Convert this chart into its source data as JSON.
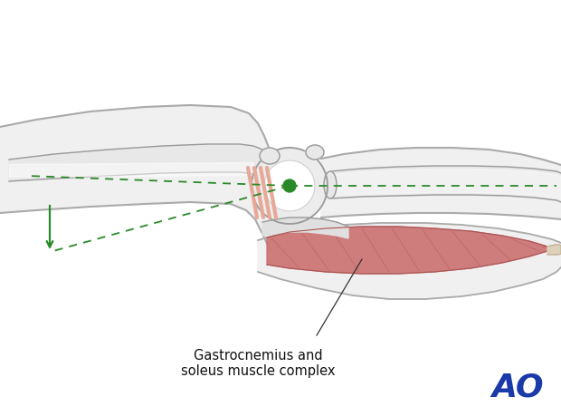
{
  "bg_color": "#ffffff",
  "limb_color": "#f0f0f0",
  "limb_outline": "#aaaaaa",
  "bone_color": "#e8e8e8",
  "bone_outline": "#999999",
  "muscle_color": "#cc7070",
  "muscle_outline": "#aa5555",
  "tendon_color": "#ddd0b8",
  "fracture_color": "#e8a898",
  "green_dot": "#2a8a2a",
  "green_line": "#2a8a2a",
  "label_text": "Gastrocnemius and\nsoleus muscle complex",
  "label_fs": 10.5,
  "ao_color": "#1a3aaa",
  "ao_fs": 26
}
